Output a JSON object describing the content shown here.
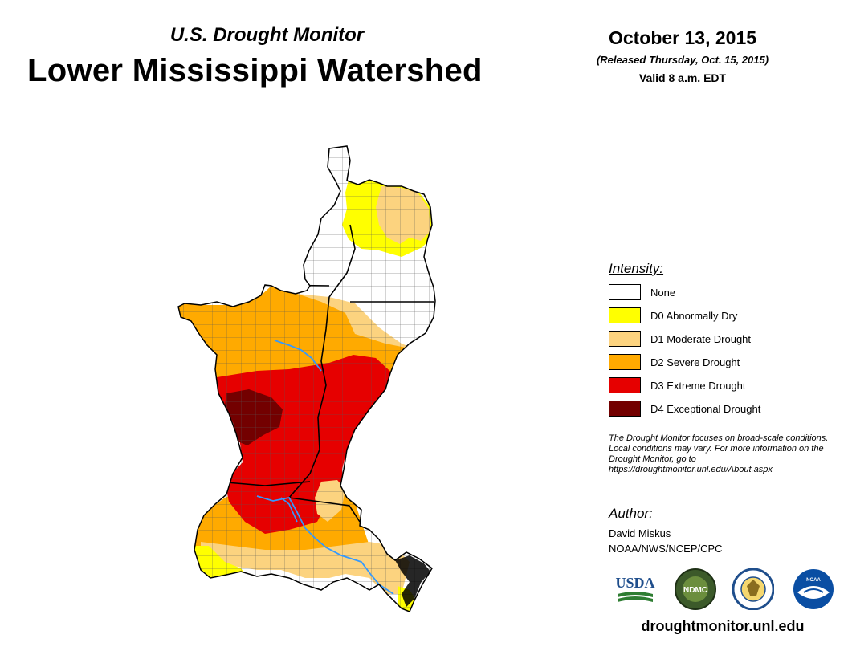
{
  "header": {
    "subtitle": "U.S. Drought Monitor",
    "title": "Lower Mississippi Watershed",
    "date": "October 13, 2015",
    "released": "(Released Thursday, Oct. 15, 2015)",
    "valid": "Valid 8 a.m. EDT"
  },
  "legend": {
    "title": "Intensity:",
    "items": [
      {
        "label": "None",
        "color": "#ffffff"
      },
      {
        "label": "D0 Abnormally Dry",
        "color": "#ffff00"
      },
      {
        "label": "D1 Moderate Drought",
        "color": "#fcd37f"
      },
      {
        "label": "D2 Severe Drought",
        "color": "#ffaa00"
      },
      {
        "label": "D3 Extreme Drought",
        "color": "#e60000"
      },
      {
        "label": "D4 Exceptional Drought",
        "color": "#730000"
      }
    ]
  },
  "note": "The Drought Monitor focuses on broad-scale conditions. Local conditions may vary. For more information on the Drought Monitor, go to https://droughtmonitor.unl.edu/About.aspx",
  "author": {
    "title": "Author:",
    "name": "David Miskus",
    "org": "NOAA/NWS/NCEP/CPC"
  },
  "logos": {
    "usda": "USDA",
    "ndmc": "NDMC",
    "noaa": "NOAA"
  },
  "website": "droughtmonitor.unl.edu",
  "colors": {
    "river": "#3399ff",
    "boundary": "#000000",
    "county": "#555555"
  }
}
